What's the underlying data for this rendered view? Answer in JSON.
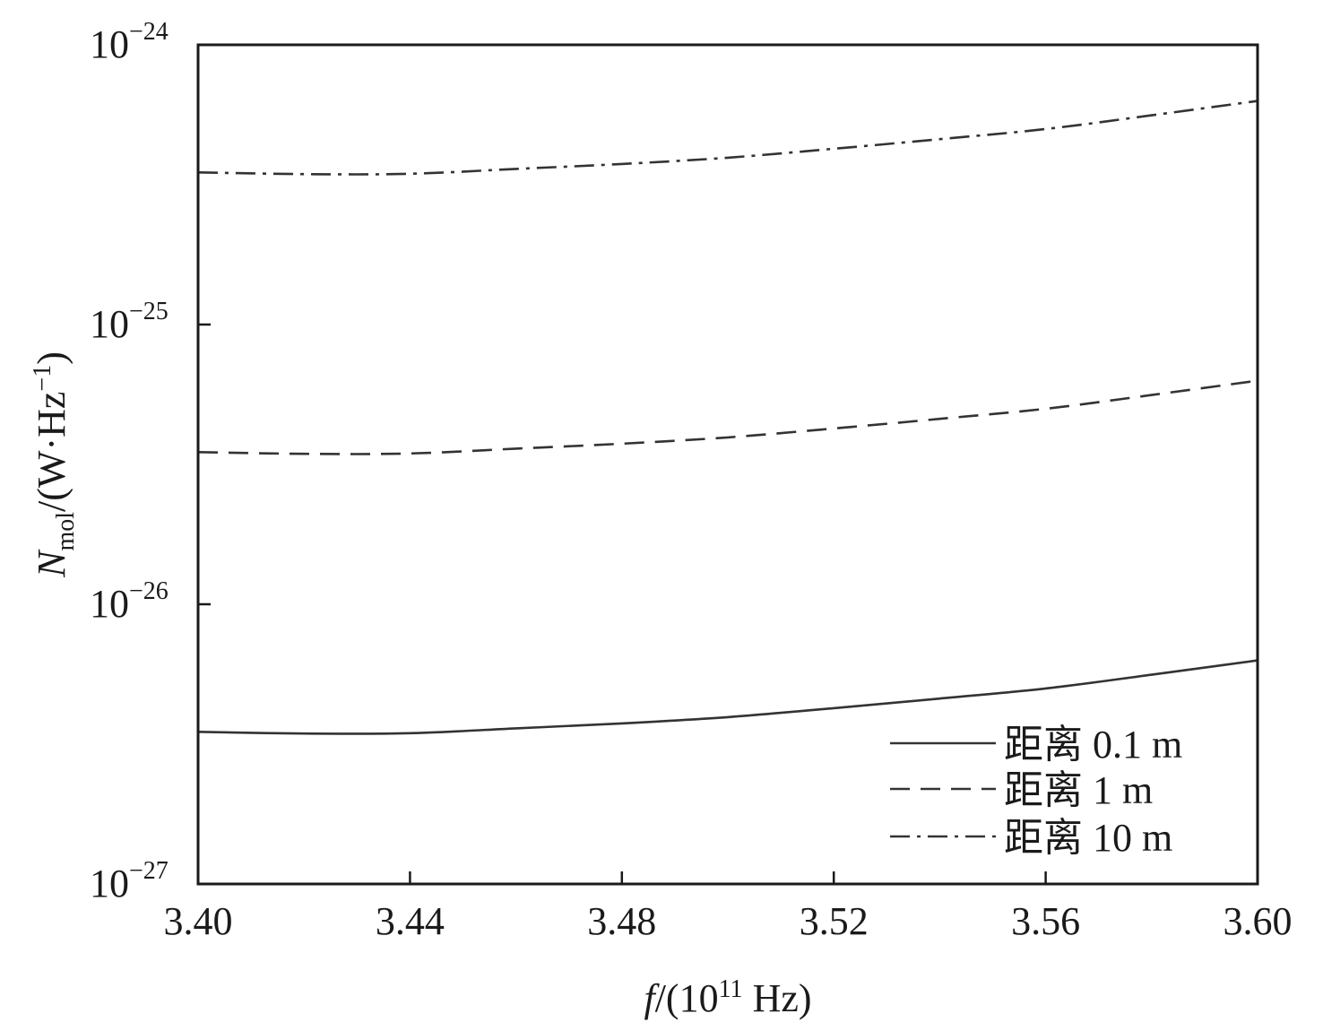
{
  "chart_data": {
    "type": "line",
    "xlabel": "f/(10¹¹ Hz)",
    "ylabel": "Nmol/(W·Hz⁻¹)",
    "x_scale": "linear",
    "y_scale": "log",
    "xlim": [
      3.4,
      3.6
    ],
    "ylim": [
      1e-27,
      1e-24
    ],
    "x_ticks": [
      "3.40",
      "3.44",
      "3.48",
      "3.52",
      "3.56",
      "3.60"
    ],
    "y_ticks": [
      {
        "base": "10",
        "exp": "−24"
      },
      {
        "base": "10",
        "exp": "−25"
      },
      {
        "base": "10",
        "exp": "−26"
      },
      {
        "base": "10",
        "exp": "−27"
      }
    ],
    "grid": false,
    "legend_position": "bottom-right",
    "x": [
      3.4,
      3.42,
      3.44,
      3.46,
      3.48,
      3.5,
      3.52,
      3.54,
      3.56,
      3.58,
      3.6
    ],
    "series": [
      {
        "name": "距离 0.1 m",
        "style": "solid",
        "values": [
          3.5e-27,
          3.45e-27,
          3.46e-27,
          3.6e-27,
          3.75e-27,
          3.95e-27,
          4.25e-27,
          4.6e-27,
          5e-27,
          5.6e-27,
          6.3e-27
        ]
      },
      {
        "name": "距离 1 m",
        "style": "dashed",
        "values": [
          3.5e-26,
          3.45e-26,
          3.46e-26,
          3.6e-26,
          3.75e-26,
          3.95e-26,
          4.25e-26,
          4.6e-26,
          5e-26,
          5.6e-26,
          6.3e-26
        ]
      },
      {
        "name": "距离 10 m",
        "style": "dashdot",
        "values": [
          3.5e-25,
          3.45e-25,
          3.46e-25,
          3.6e-25,
          3.75e-25,
          3.95e-25,
          4.25e-25,
          4.6e-25,
          5e-25,
          5.6e-25,
          6.3e-25
        ]
      }
    ],
    "colors": {
      "line": "#333333",
      "axis": "#1a1a1a"
    }
  }
}
